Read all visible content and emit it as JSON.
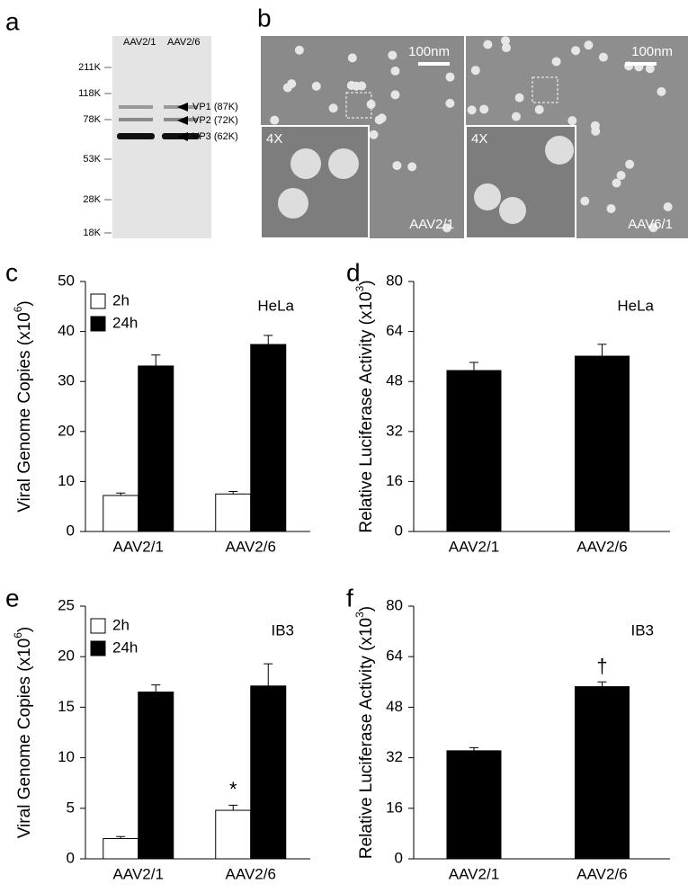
{
  "panel_letters": [
    "a",
    "b",
    "c",
    "d",
    "e",
    "f"
  ],
  "gel": {
    "lanes": [
      "AAV2/1",
      "AAV2/6"
    ],
    "markers": [
      "211K",
      "118K",
      "78K",
      "53K",
      "28K",
      "18K"
    ],
    "bands": [
      "VP1 (87K)",
      "VP2 (72K)",
      "VP3 (62K)"
    ]
  },
  "micrographs": [
    {
      "scale": "100nm",
      "inset": "4X",
      "label": "AAV2/1"
    },
    {
      "scale": "100nm",
      "inset": "4X",
      "label": "AAV6/1"
    }
  ],
  "chart_data": [
    {
      "type": "bar",
      "annotation": "HeLa",
      "ylabel": {
        "text": "Viral Genome Copies (x10",
        "superscript": "6",
        "suffix": ")"
      },
      "categories": [
        "AAV2/1",
        "AAV2/6"
      ],
      "series": [
        {
          "name": "2h",
          "color": "#ffffff",
          "values": [
            7.2,
            7.5
          ],
          "errors": [
            0.5,
            0.5
          ]
        },
        {
          "name": "24h",
          "color": "#000000",
          "values": [
            33.1,
            37.4
          ],
          "errors": [
            2.2,
            1.8
          ]
        }
      ],
      "ylim": [
        0,
        50
      ],
      "yticks": [
        0,
        10,
        20,
        30,
        40,
        50
      ]
    },
    {
      "type": "bar",
      "annotation": "HeLa",
      "ylabel": {
        "text": "Relative Luciferase Activity (x10",
        "superscript": "3",
        "suffix": ")"
      },
      "categories": [
        "AAV2/1",
        "AAV2/6"
      ],
      "series": [
        {
          "color": "#000000",
          "values": [
            51.5,
            56.1
          ],
          "errors": [
            2.6,
            3.8
          ]
        }
      ],
      "ylim": [
        0,
        80
      ],
      "yticks": [
        0,
        16,
        32,
        48,
        64,
        80
      ]
    },
    {
      "type": "bar",
      "annotation": "IB3",
      "ylabel": {
        "text": "Viral Genome Copies (x10",
        "superscript": "6",
        "suffix": ")"
      },
      "categories": [
        "AAV2/1",
        "AAV2/6"
      ],
      "series": [
        {
          "name": "2h",
          "color": "#ffffff",
          "values": [
            2.0,
            4.8
          ],
          "errors": [
            0.2,
            0.5
          ]
        },
        {
          "name": "24h",
          "color": "#000000",
          "values": [
            16.5,
            17.1
          ],
          "errors": [
            0.7,
            2.2
          ]
        }
      ],
      "marks": [
        {
          "category": "AAV2/6",
          "series": "2h",
          "text": "*"
        }
      ],
      "ylim": [
        0,
        25
      ],
      "yticks": [
        0,
        5,
        10,
        15,
        20,
        25
      ]
    },
    {
      "type": "bar",
      "annotation": "IB3",
      "ylabel": {
        "text": "Relative Luciferase Activity (x10",
        "superscript": "3",
        "suffix": ")"
      },
      "categories": [
        "AAV2/1",
        "AAV2/6"
      ],
      "series": [
        {
          "color": "#000000",
          "values": [
            34.2,
            54.5
          ],
          "errors": [
            1.0,
            1.5
          ]
        }
      ],
      "marks": [
        {
          "category": "AAV2/6",
          "text": "†"
        }
      ],
      "ylim": [
        0,
        80
      ],
      "yticks": [
        0,
        16,
        32,
        48,
        64,
        80
      ]
    }
  ]
}
